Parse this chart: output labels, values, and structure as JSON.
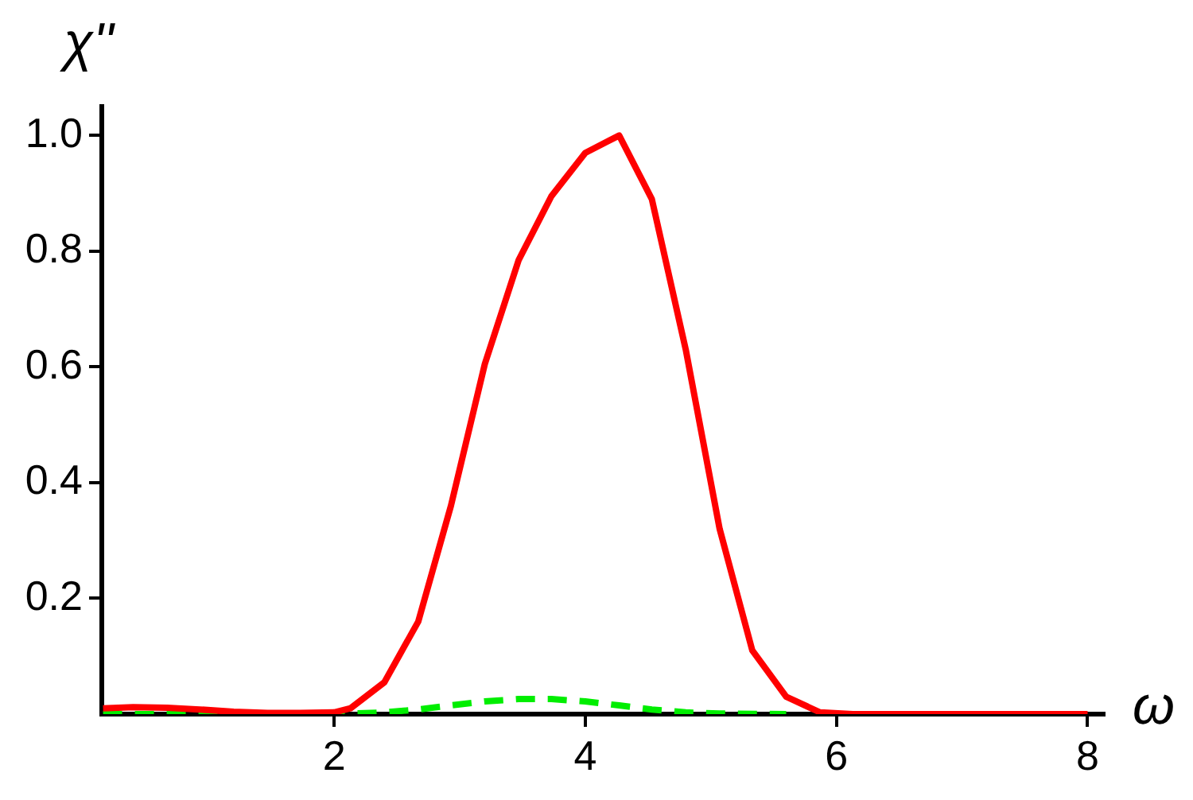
{
  "chart_data": {
    "type": "line",
    "xlabel": "ω",
    "ylabel": "χ''",
    "xlim": [
      0.15,
      8.13
    ],
    "ylim": [
      0,
      1.05
    ],
    "xticks": [
      2,
      4,
      6,
      8
    ],
    "yticks": [
      0.2,
      0.4,
      0.6,
      0.8,
      {
        "value": 1,
        "label": "1.0"
      }
    ],
    "grid": false,
    "legend": false,
    "marker": "none",
    "series": [
      {
        "color": "#ff0000",
        "line_style": "solid",
        "x": [
          0.16,
          0.4,
          0.67,
          0.93,
          1.2,
          1.47,
          1.73,
          2.0,
          2.13,
          2.4,
          2.67,
          2.93,
          3.2,
          3.47,
          3.73,
          4.0,
          4.27,
          4.53,
          4.8,
          5.07,
          5.33,
          5.6,
          5.87,
          6.13,
          6.4,
          6.67,
          6.93,
          7.2,
          7.47,
          7.73,
          8.0
        ],
        "values": [
          0.01,
          0.012,
          0.011,
          0.008,
          0.004,
          0.002,
          0.002,
          0.003,
          0.01,
          0.055,
          0.16,
          0.36,
          0.605,
          0.785,
          0.895,
          0.97,
          1.0,
          0.89,
          0.63,
          0.32,
          0.11,
          0.03,
          0.003,
          0,
          0,
          0,
          0,
          0,
          0,
          0,
          0
        ]
      },
      {
        "color": "#00ee00",
        "line_style": "dashed",
        "x": [
          0.16,
          0.67,
          1.2,
          1.73,
          2.0,
          2.4,
          2.67,
          2.93,
          3.2,
          3.47,
          3.73,
          4.0,
          4.27,
          4.53,
          4.8,
          5.07,
          5.6
        ],
        "values": [
          0,
          0,
          0,
          0,
          0,
          0.003,
          0.008,
          0.015,
          0.022,
          0.026,
          0.026,
          0.022,
          0.015,
          0.008,
          0.003,
          0.001,
          0
        ]
      }
    ]
  }
}
